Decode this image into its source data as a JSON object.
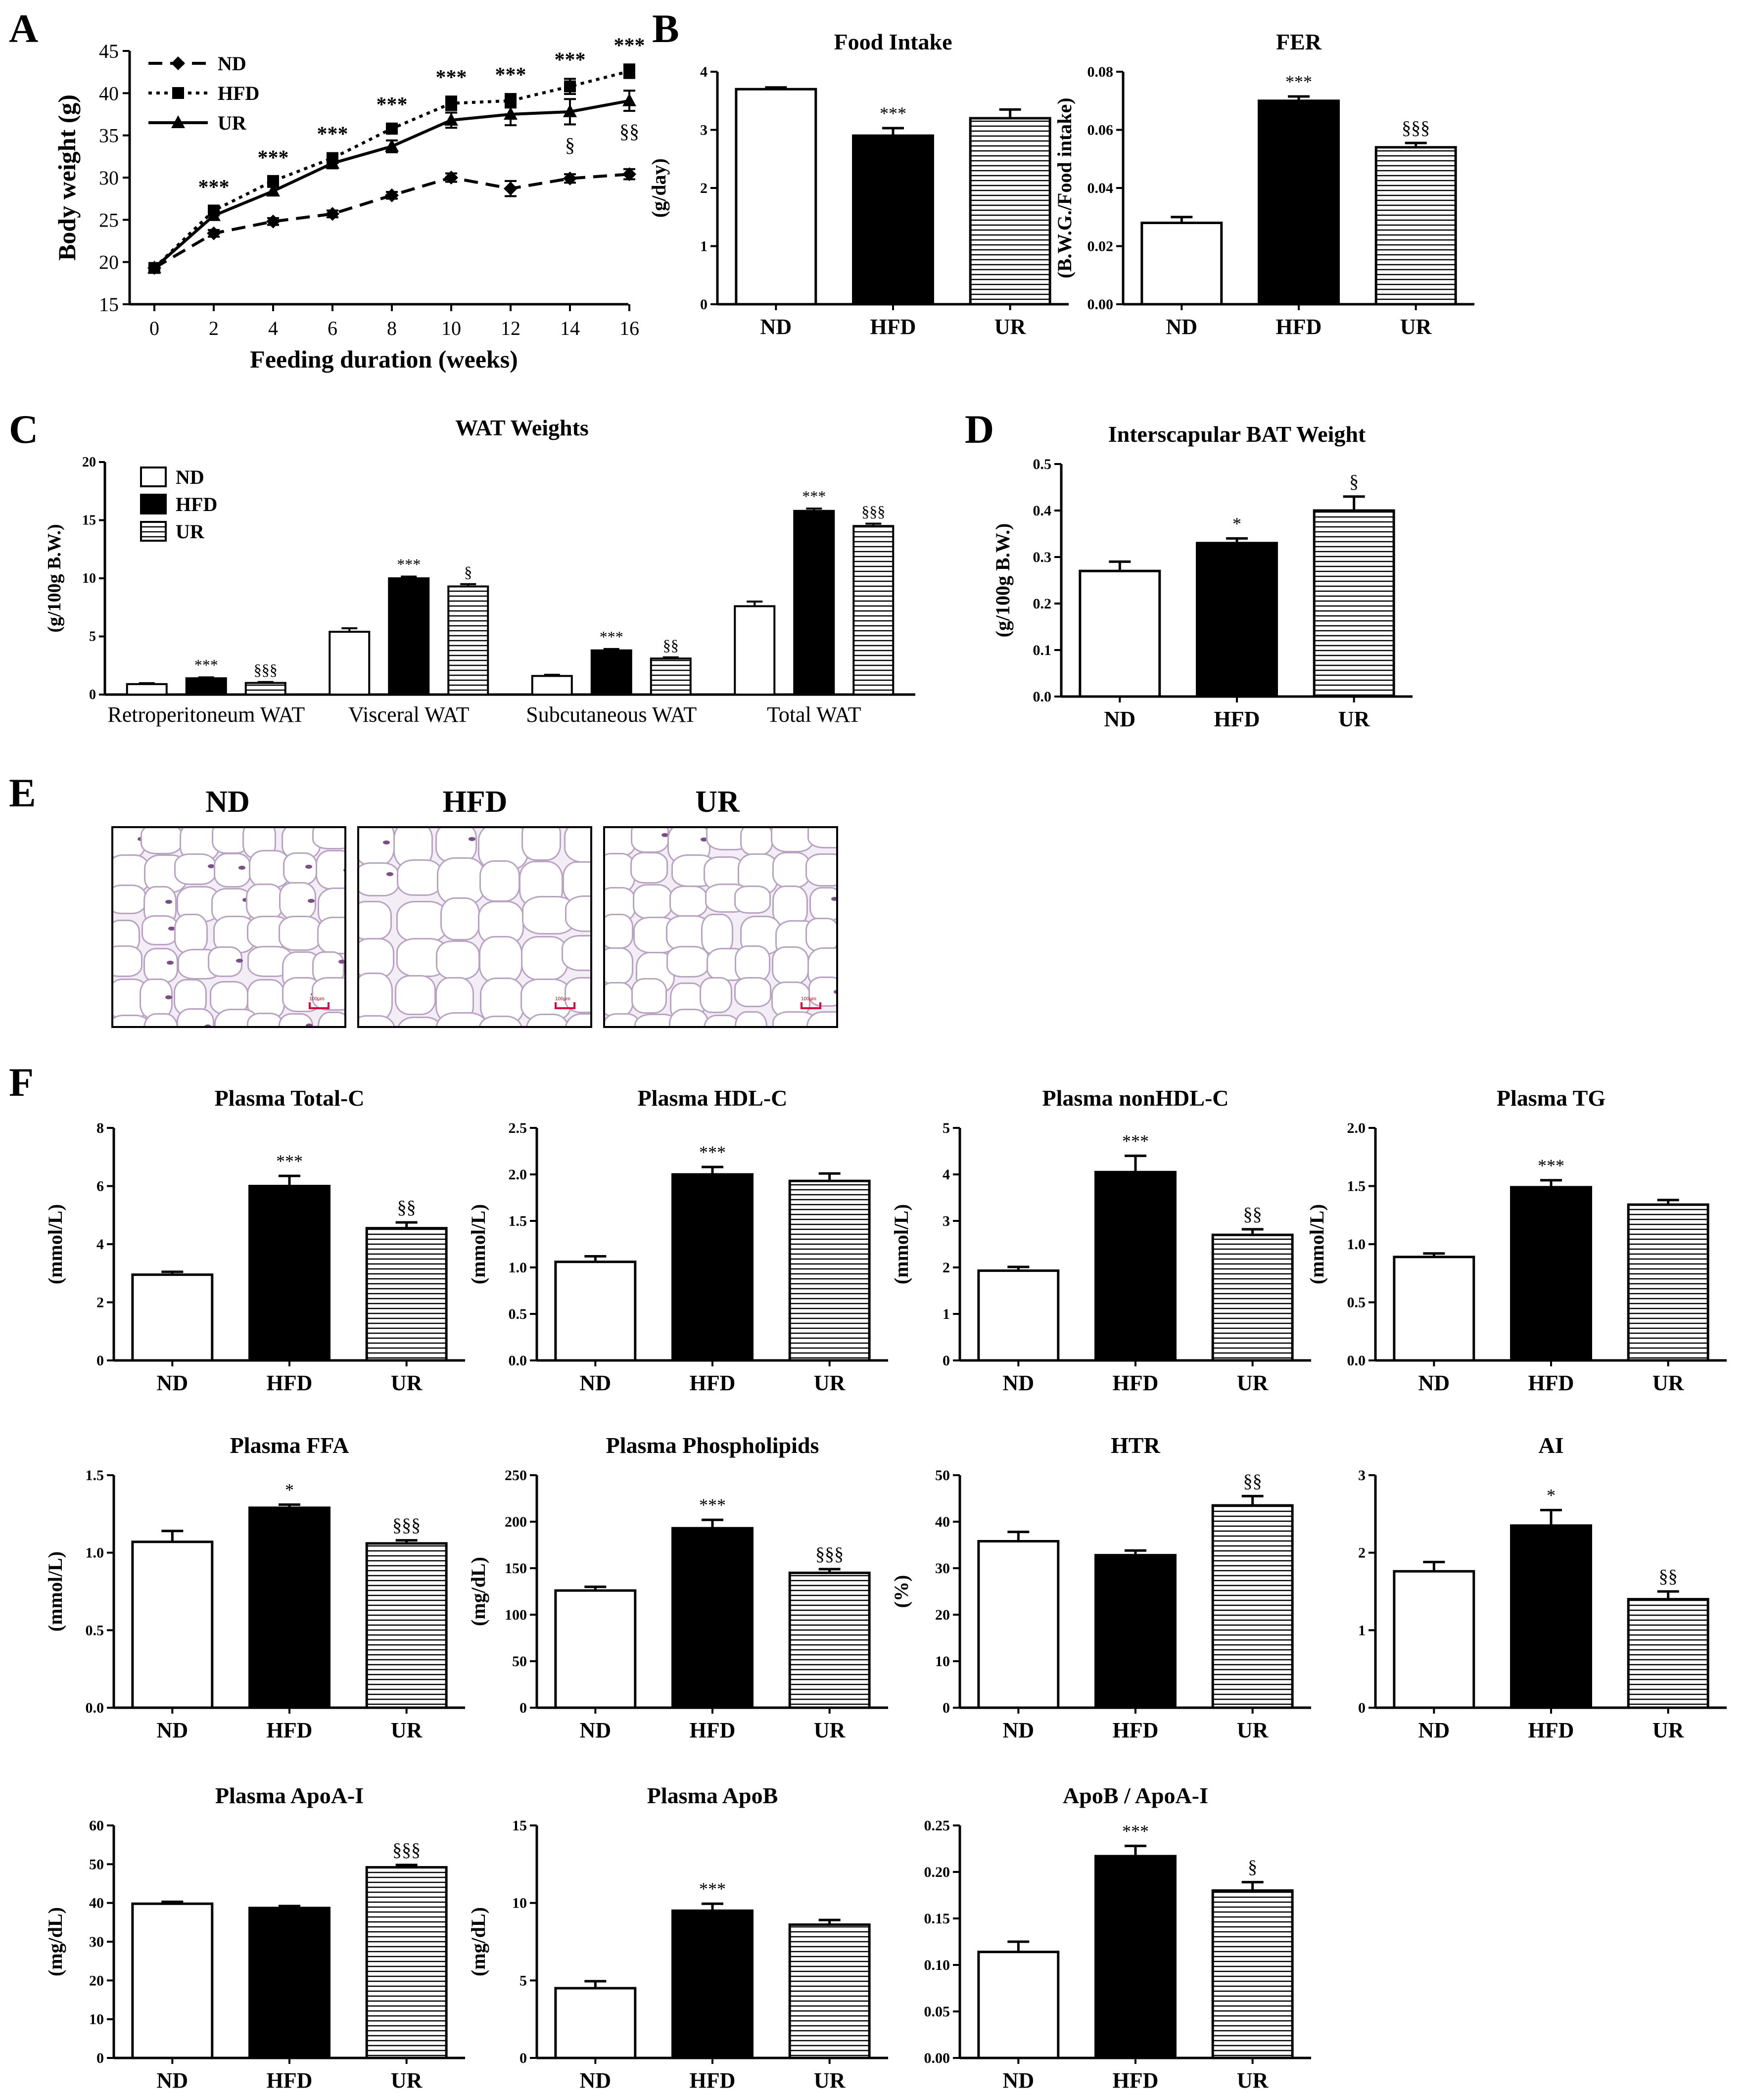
{
  "panel_labels": [
    "A",
    "B",
    "C",
    "D",
    "E",
    "F"
  ],
  "colors": {
    "ink": "#000000",
    "nd_fill": "#ffffff",
    "hfd_fill": "#000000",
    "ur_hatch": "#000000"
  },
  "histology": {
    "titles": [
      "ND",
      "HFD",
      "UR"
    ],
    "scale_bar_text": "100μm"
  },
  "chart_data": [
    {
      "id": "A",
      "type": "line",
      "title": "",
      "xlabel": "Feeding duration (weeks)",
      "ylabel": "Body weight (g)",
      "x": [
        0,
        2,
        4,
        6,
        8,
        10,
        12,
        14,
        16
      ],
      "xticks": [
        "0",
        "2",
        "4",
        "6",
        "8",
        "10",
        "12",
        "14",
        "16"
      ],
      "ylim": [
        15,
        45
      ],
      "yticks": [
        "15",
        "20",
        "25",
        "30",
        "35",
        "40",
        "45"
      ],
      "legend": [
        "ND",
        "HFD",
        "UR"
      ],
      "series": [
        {
          "name": "ND",
          "values": [
            19.3,
            23.4,
            24.8,
            25.7,
            27.9,
            30.0,
            28.7,
            29.9,
            30.4
          ],
          "err": [
            0.3,
            0.4,
            0.4,
            0.4,
            0.4,
            0.5,
            0.9,
            0.5,
            0.6
          ]
        },
        {
          "name": "HFD",
          "values": [
            19.3,
            26.1,
            29.6,
            32.3,
            35.8,
            38.8,
            39.1,
            40.8,
            42.6
          ],
          "err": [
            0.3,
            0.5,
            0.5,
            0.6,
            0.6,
            0.8,
            0.8,
            0.9,
            0.8
          ]
        },
        {
          "name": "UR",
          "values": [
            19.3,
            25.5,
            28.4,
            31.7,
            33.7,
            36.8,
            37.5,
            37.8,
            39.1
          ],
          "err": [
            0.3,
            0.5,
            0.5,
            0.6,
            0.7,
            0.9,
            1.3,
            1.5,
            1.2
          ]
        }
      ],
      "annotations": [
        {
          "x": 2,
          "text": "***"
        },
        {
          "x": 4,
          "text": "***"
        },
        {
          "x": 6,
          "text": "***"
        },
        {
          "x": 8,
          "text": "***"
        },
        {
          "x": 10,
          "text": "***"
        },
        {
          "x": 12,
          "text": "***"
        },
        {
          "x": 14,
          "text": "***"
        },
        {
          "x": 16,
          "text": "***"
        },
        {
          "x": 14,
          "text": "§"
        },
        {
          "x": 16,
          "text": "§§"
        }
      ]
    },
    {
      "id": "B1",
      "type": "bar",
      "title": "Food Intake",
      "ylabel": "(g/day)",
      "categories": [
        "ND",
        "HFD",
        "UR"
      ],
      "values": [
        3.7,
        2.9,
        3.2
      ],
      "err": [
        0.03,
        0.13,
        0.15
      ],
      "ylim": [
        0,
        4
      ],
      "yticks": [
        "0",
        "1",
        "2",
        "3",
        "4"
      ],
      "annotations": [
        "",
        "***",
        ""
      ]
    },
    {
      "id": "B2",
      "type": "bar",
      "title": "FER",
      "ylabel": "(B.W.G./Food intake)",
      "categories": [
        "ND",
        "HFD",
        "UR"
      ],
      "values": [
        0.028,
        0.07,
        0.054
      ],
      "err": [
        0.002,
        0.0015,
        0.0015
      ],
      "ylim": [
        0,
        0.08
      ],
      "yticks": [
        "0.00",
        "0.02",
        "0.04",
        "0.06",
        "0.08"
      ],
      "annotations": [
        "",
        "***",
        "§§§"
      ]
    },
    {
      "id": "C",
      "type": "bar",
      "title": "WAT Weights",
      "ylabel": "(g/100g B.W.)",
      "categories": [
        "Retroperitoneum WAT",
        "Visceral WAT",
        "Subcutaneous WAT",
        "Total WAT"
      ],
      "legend": [
        "ND",
        "HFD",
        "UR"
      ],
      "ylim": [
        0,
        20
      ],
      "yticks": [
        "0",
        "5",
        "10",
        "15",
        "20"
      ],
      "series": [
        {
          "name": "ND",
          "values": [
            0.9,
            5.4,
            1.6,
            7.6
          ],
          "err": [
            0.08,
            0.3,
            0.1,
            0.4
          ]
        },
        {
          "name": "HFD",
          "values": [
            1.4,
            10.0,
            3.8,
            15.8
          ],
          "err": [
            0.08,
            0.15,
            0.12,
            0.2
          ]
        },
        {
          "name": "UR",
          "values": [
            1.0,
            9.3,
            3.1,
            14.5
          ],
          "err": [
            0.08,
            0.2,
            0.1,
            0.2
          ]
        }
      ],
      "annotations": [
        {
          "group": 0,
          "series": "HFD",
          "text": "***"
        },
        {
          "group": 0,
          "series": "UR",
          "text": "§§§"
        },
        {
          "group": 1,
          "series": "HFD",
          "text": "***"
        },
        {
          "group": 1,
          "series": "UR",
          "text": "§"
        },
        {
          "group": 2,
          "series": "HFD",
          "text": "***"
        },
        {
          "group": 2,
          "series": "UR",
          "text": "§§"
        },
        {
          "group": 3,
          "series": "HFD",
          "text": "***"
        },
        {
          "group": 3,
          "series": "UR",
          "text": "§§§"
        }
      ]
    },
    {
      "id": "D",
      "type": "bar",
      "title": "Interscapular BAT Weight",
      "ylabel": "(g/100g B.W.)",
      "categories": [
        "ND",
        "HFD",
        "UR"
      ],
      "values": [
        0.27,
        0.33,
        0.4
      ],
      "err": [
        0.02,
        0.01,
        0.03
      ],
      "ylim": [
        0,
        0.5
      ],
      "yticks": [
        "0.0",
        "0.1",
        "0.2",
        "0.3",
        "0.4",
        "0.5"
      ],
      "annotations": [
        "",
        "*",
        "§"
      ]
    },
    {
      "id": "F1",
      "type": "bar",
      "title": "Plasma Total-C",
      "ylabel": "(mmol/L)",
      "categories": [
        "ND",
        "HFD",
        "UR"
      ],
      "values": [
        2.95,
        6.0,
        4.55
      ],
      "err": [
        0.1,
        0.35,
        0.2
      ],
      "ylim": [
        0,
        8
      ],
      "yticks": [
        "0",
        "2",
        "4",
        "6",
        "8"
      ],
      "annotations": [
        "",
        "***",
        "§§"
      ]
    },
    {
      "id": "F2",
      "type": "bar",
      "title": "Plasma HDL-C",
      "ylabel": "(mmol/L)",
      "categories": [
        "ND",
        "HFD",
        "UR"
      ],
      "values": [
        1.06,
        2.0,
        1.93
      ],
      "err": [
        0.06,
        0.08,
        0.08
      ],
      "ylim": [
        0,
        2.5
      ],
      "yticks": [
        "0.0",
        "0.5",
        "1.0",
        "1.5",
        "2.0",
        "2.5"
      ],
      "annotations": [
        "",
        "***",
        ""
      ]
    },
    {
      "id": "F3",
      "type": "bar",
      "title": "Plasma nonHDL-C",
      "ylabel": "(mmol/L)",
      "categories": [
        "ND",
        "HFD",
        "UR"
      ],
      "values": [
        1.93,
        4.05,
        2.7
      ],
      "err": [
        0.08,
        0.35,
        0.12
      ],
      "ylim": [
        0,
        5
      ],
      "yticks": [
        "0",
        "1",
        "2",
        "3",
        "4",
        "5"
      ],
      "annotations": [
        "",
        "***",
        "§§"
      ]
    },
    {
      "id": "F4",
      "type": "bar",
      "title": "Plasma TG",
      "ylabel": "(mmol/L)",
      "categories": [
        "ND",
        "HFD",
        "UR"
      ],
      "values": [
        0.89,
        1.49,
        1.34
      ],
      "err": [
        0.03,
        0.06,
        0.04
      ],
      "ylim": [
        0,
        2.0
      ],
      "yticks": [
        "0.0",
        "0.5",
        "1.0",
        "1.5",
        "2.0"
      ],
      "annotations": [
        "",
        "***",
        ""
      ]
    },
    {
      "id": "F5",
      "type": "bar",
      "title": "Plasma FFA",
      "ylabel": "(mmol/L)",
      "categories": [
        "ND",
        "HFD",
        "UR"
      ],
      "values": [
        1.07,
        1.29,
        1.06
      ],
      "err": [
        0.07,
        0.02,
        0.02
      ],
      "ylim": [
        0,
        1.5
      ],
      "yticks": [
        "0.0",
        "0.5",
        "1.0",
        "1.5"
      ],
      "annotations": [
        "",
        "*",
        "§§§"
      ]
    },
    {
      "id": "F6",
      "type": "bar",
      "title": "Plasma Phospholipids",
      "ylabel": "(mg/dL)",
      "categories": [
        "ND",
        "HFD",
        "UR"
      ],
      "values": [
        126,
        193,
        145
      ],
      "err": [
        4,
        9,
        4
      ],
      "ylim": [
        0,
        250
      ],
      "yticks": [
        "0",
        "50",
        "100",
        "150",
        "200",
        "250"
      ],
      "annotations": [
        "",
        "***",
        "§§§"
      ]
    },
    {
      "id": "F7",
      "type": "bar",
      "title": "HTR",
      "ylabel": "(%)",
      "categories": [
        "ND",
        "HFD",
        "UR"
      ],
      "values": [
        35.8,
        32.8,
        43.5
      ],
      "err": [
        2,
        1,
        2
      ],
      "ylim": [
        0,
        50
      ],
      "yticks": [
        "0",
        "10",
        "20",
        "30",
        "40",
        "50"
      ],
      "annotations": [
        "",
        "",
        "§§"
      ]
    },
    {
      "id": "F8",
      "type": "bar",
      "title": "AI",
      "ylabel": "",
      "categories": [
        "ND",
        "HFD",
        "UR"
      ],
      "values": [
        1.76,
        2.35,
        1.4
      ],
      "err": [
        0.12,
        0.2,
        0.1
      ],
      "ylim": [
        0,
        3
      ],
      "yticks": [
        "0",
        "1",
        "2",
        "3"
      ],
      "annotations": [
        "",
        "*",
        "§§"
      ]
    },
    {
      "id": "F9",
      "type": "bar",
      "title": "Plasma ApoA-I",
      "ylabel": "(mg/dL)",
      "categories": [
        "ND",
        "HFD",
        "UR"
      ],
      "values": [
        39.8,
        38.7,
        49.2
      ],
      "err": [
        0.5,
        0.5,
        0.6
      ],
      "ylim": [
        0,
        60
      ],
      "yticks": [
        "0",
        "10",
        "20",
        "30",
        "40",
        "50",
        "60"
      ],
      "annotations": [
        "",
        "",
        "§§§"
      ]
    },
    {
      "id": "F10",
      "type": "bar",
      "title": "Plasma ApoB",
      "ylabel": "(mg/dL)",
      "categories": [
        "ND",
        "HFD",
        "UR"
      ],
      "values": [
        4.5,
        9.5,
        8.6
      ],
      "err": [
        0.45,
        0.45,
        0.3
      ],
      "ylim": [
        0,
        15
      ],
      "yticks": [
        "0",
        "5",
        "10",
        "15"
      ],
      "annotations": [
        "",
        "***",
        ""
      ]
    },
    {
      "id": "F11",
      "type": "bar",
      "title": "ApoB / ApoA-I",
      "ylabel": "",
      "categories": [
        "ND",
        "HFD",
        "UR"
      ],
      "values": [
        0.114,
        0.217,
        0.18
      ],
      "err": [
        0.011,
        0.011,
        0.009
      ],
      "ylim": [
        0,
        0.25
      ],
      "yticks": [
        "0.00",
        "0.05",
        "0.10",
        "0.15",
        "0.20",
        "0.25"
      ],
      "annotations": [
        "",
        "***",
        "§"
      ]
    }
  ]
}
